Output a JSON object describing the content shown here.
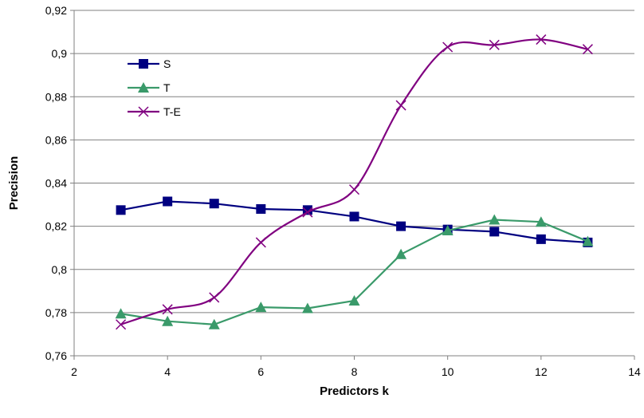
{
  "chart_data": {
    "type": "line",
    "title": "",
    "xlabel": "Predictors k",
    "ylabel": "Precision",
    "xlim": [
      2,
      14
    ],
    "ylim": [
      0.76,
      0.92
    ],
    "xticks": [
      2,
      4,
      6,
      8,
      10,
      12,
      14
    ],
    "xtick_labels": [
      "2",
      "4",
      "6",
      "8",
      "10",
      "12",
      "14"
    ],
    "yticks": [
      0.76,
      0.78,
      0.8,
      0.82,
      0.84,
      0.86,
      0.88,
      0.9,
      0.92
    ],
    "ytick_labels": [
      "0,76",
      "0,78",
      "0,8",
      "0,82",
      "0,84",
      "0,86",
      "0,88",
      "0,9",
      "0,92"
    ],
    "grid": "horizontal",
    "legend_position": "top-left",
    "x": [
      3,
      4,
      5,
      6,
      7,
      8,
      9,
      10,
      11,
      12,
      13
    ],
    "series": [
      {
        "name": "S",
        "values": [
          0.8275,
          0.8315,
          0.8305,
          0.828,
          0.8275,
          0.8245,
          0.82,
          0.8185,
          0.8175,
          0.814,
          0.8125
        ],
        "color": "#000080",
        "marker": "square",
        "smooth": false
      },
      {
        "name": "T",
        "values": [
          0.7795,
          0.776,
          0.7745,
          0.7825,
          0.782,
          0.7855,
          0.807,
          0.818,
          0.823,
          0.822,
          0.813
        ],
        "color": "#3a9a6a",
        "marker": "triangle",
        "smooth": false
      },
      {
        "name": "T-E",
        "values": [
          0.7745,
          0.7815,
          0.787,
          0.8125,
          0.8265,
          0.837,
          0.876,
          0.903,
          0.904,
          0.9065,
          0.902
        ],
        "color": "#800080",
        "marker": "x",
        "smooth": true
      }
    ]
  }
}
